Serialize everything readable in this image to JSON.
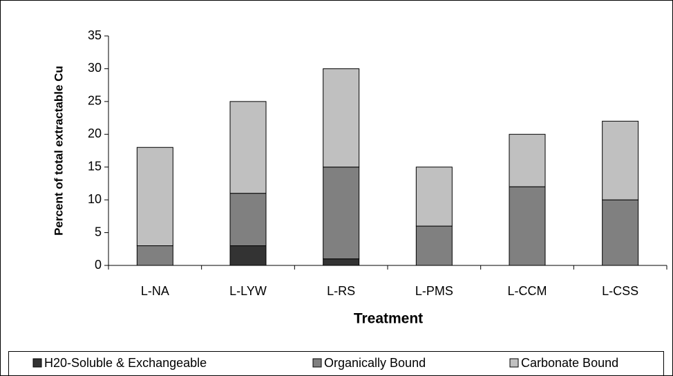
{
  "chart_data": {
    "type": "stacked_bar",
    "xlabel": "Treatment",
    "ylabel": "Percent of total extractable Cu",
    "categories": [
      "L-NA",
      "L-LYW",
      "L-RS",
      "L-PMS",
      "L-CCM",
      "L-CSS"
    ],
    "series": [
      {
        "name": "H20-Soluble & Exchangeable",
        "color": "#333333",
        "values": [
          0,
          3,
          1,
          0,
          0,
          0
        ]
      },
      {
        "name": "Organically Bound",
        "color": "#808080",
        "values": [
          3,
          8,
          14,
          6,
          12,
          10
        ]
      },
      {
        "name": "Carbonate Bound",
        "color": "#c0c0c0",
        "values": [
          15,
          14,
          15,
          9,
          8,
          12
        ]
      }
    ],
    "ylim": [
      0,
      35
    ],
    "yticks": [
      0,
      5,
      10,
      15,
      20,
      25,
      30,
      35
    ],
    "grid": false,
    "legend": "bottom"
  }
}
